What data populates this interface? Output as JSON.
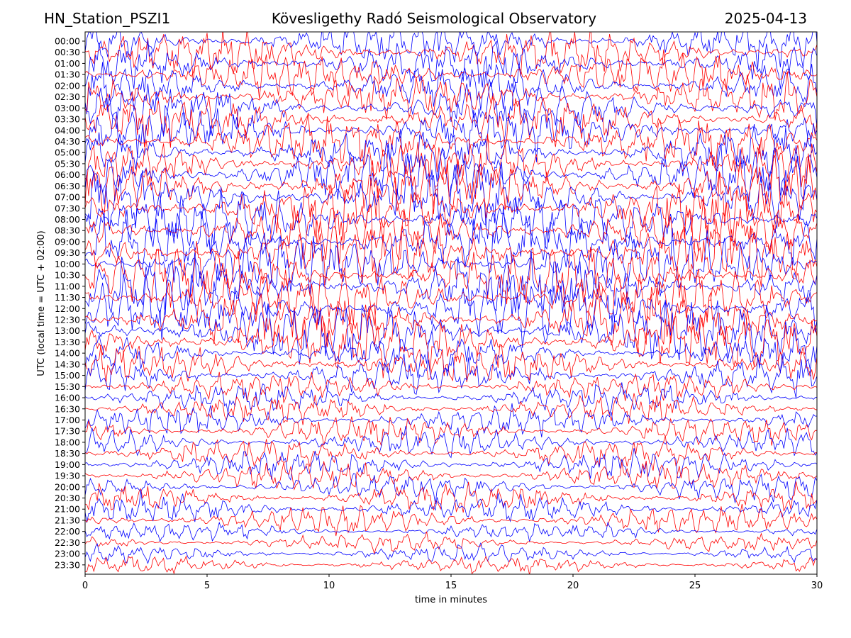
{
  "header": {
    "station": "HN_Station_PSZI1",
    "observatory": "Kövesligethy Radó Seismological Observatory",
    "date": "2025-04-13"
  },
  "colors": {
    "trace_a": "#ff0000",
    "trace_b": "#0000ff",
    "axes": "#000000",
    "background": "#ffffff"
  },
  "chart_data": {
    "type": "line",
    "title": "Kövesligethy Radó Seismological Observatory",
    "xlabel": "time in minutes",
    "ylabel": "UTC (local time = UTC + 02:00)",
    "xlim": [
      0,
      30
    ],
    "x_ticks": [
      0,
      5,
      10,
      15,
      20,
      25,
      30
    ],
    "y_ticks": [
      "00:00",
      "00:30",
      "01:00",
      "01:30",
      "02:00",
      "02:30",
      "03:00",
      "03:30",
      "04:00",
      "04:30",
      "05:00",
      "05:30",
      "06:00",
      "06:30",
      "07:00",
      "07:30",
      "08:00",
      "08:30",
      "09:00",
      "09:30",
      "10:00",
      "10:30",
      "11:00",
      "11:30",
      "12:00",
      "12:30",
      "13:00",
      "13:30",
      "14:00",
      "14:30",
      "15:00",
      "15:30",
      "16:00",
      "16:30",
      "17:00",
      "17:30",
      "18:00",
      "18:30",
      "19:00",
      "19:30",
      "20:00",
      "20:30",
      "21:00",
      "21:30",
      "22:00",
      "22:30",
      "23:00",
      "23:30"
    ],
    "series_colors": [
      "#0000ff",
      "#ff0000"
    ],
    "grid": false,
    "legend": "none",
    "note_traces": "48 helicorder traces, one per 30-minute row, alternating blue/red; high-amplitude seismic noise throughout, strongest between 06:00 and 14:00 UTC"
  }
}
